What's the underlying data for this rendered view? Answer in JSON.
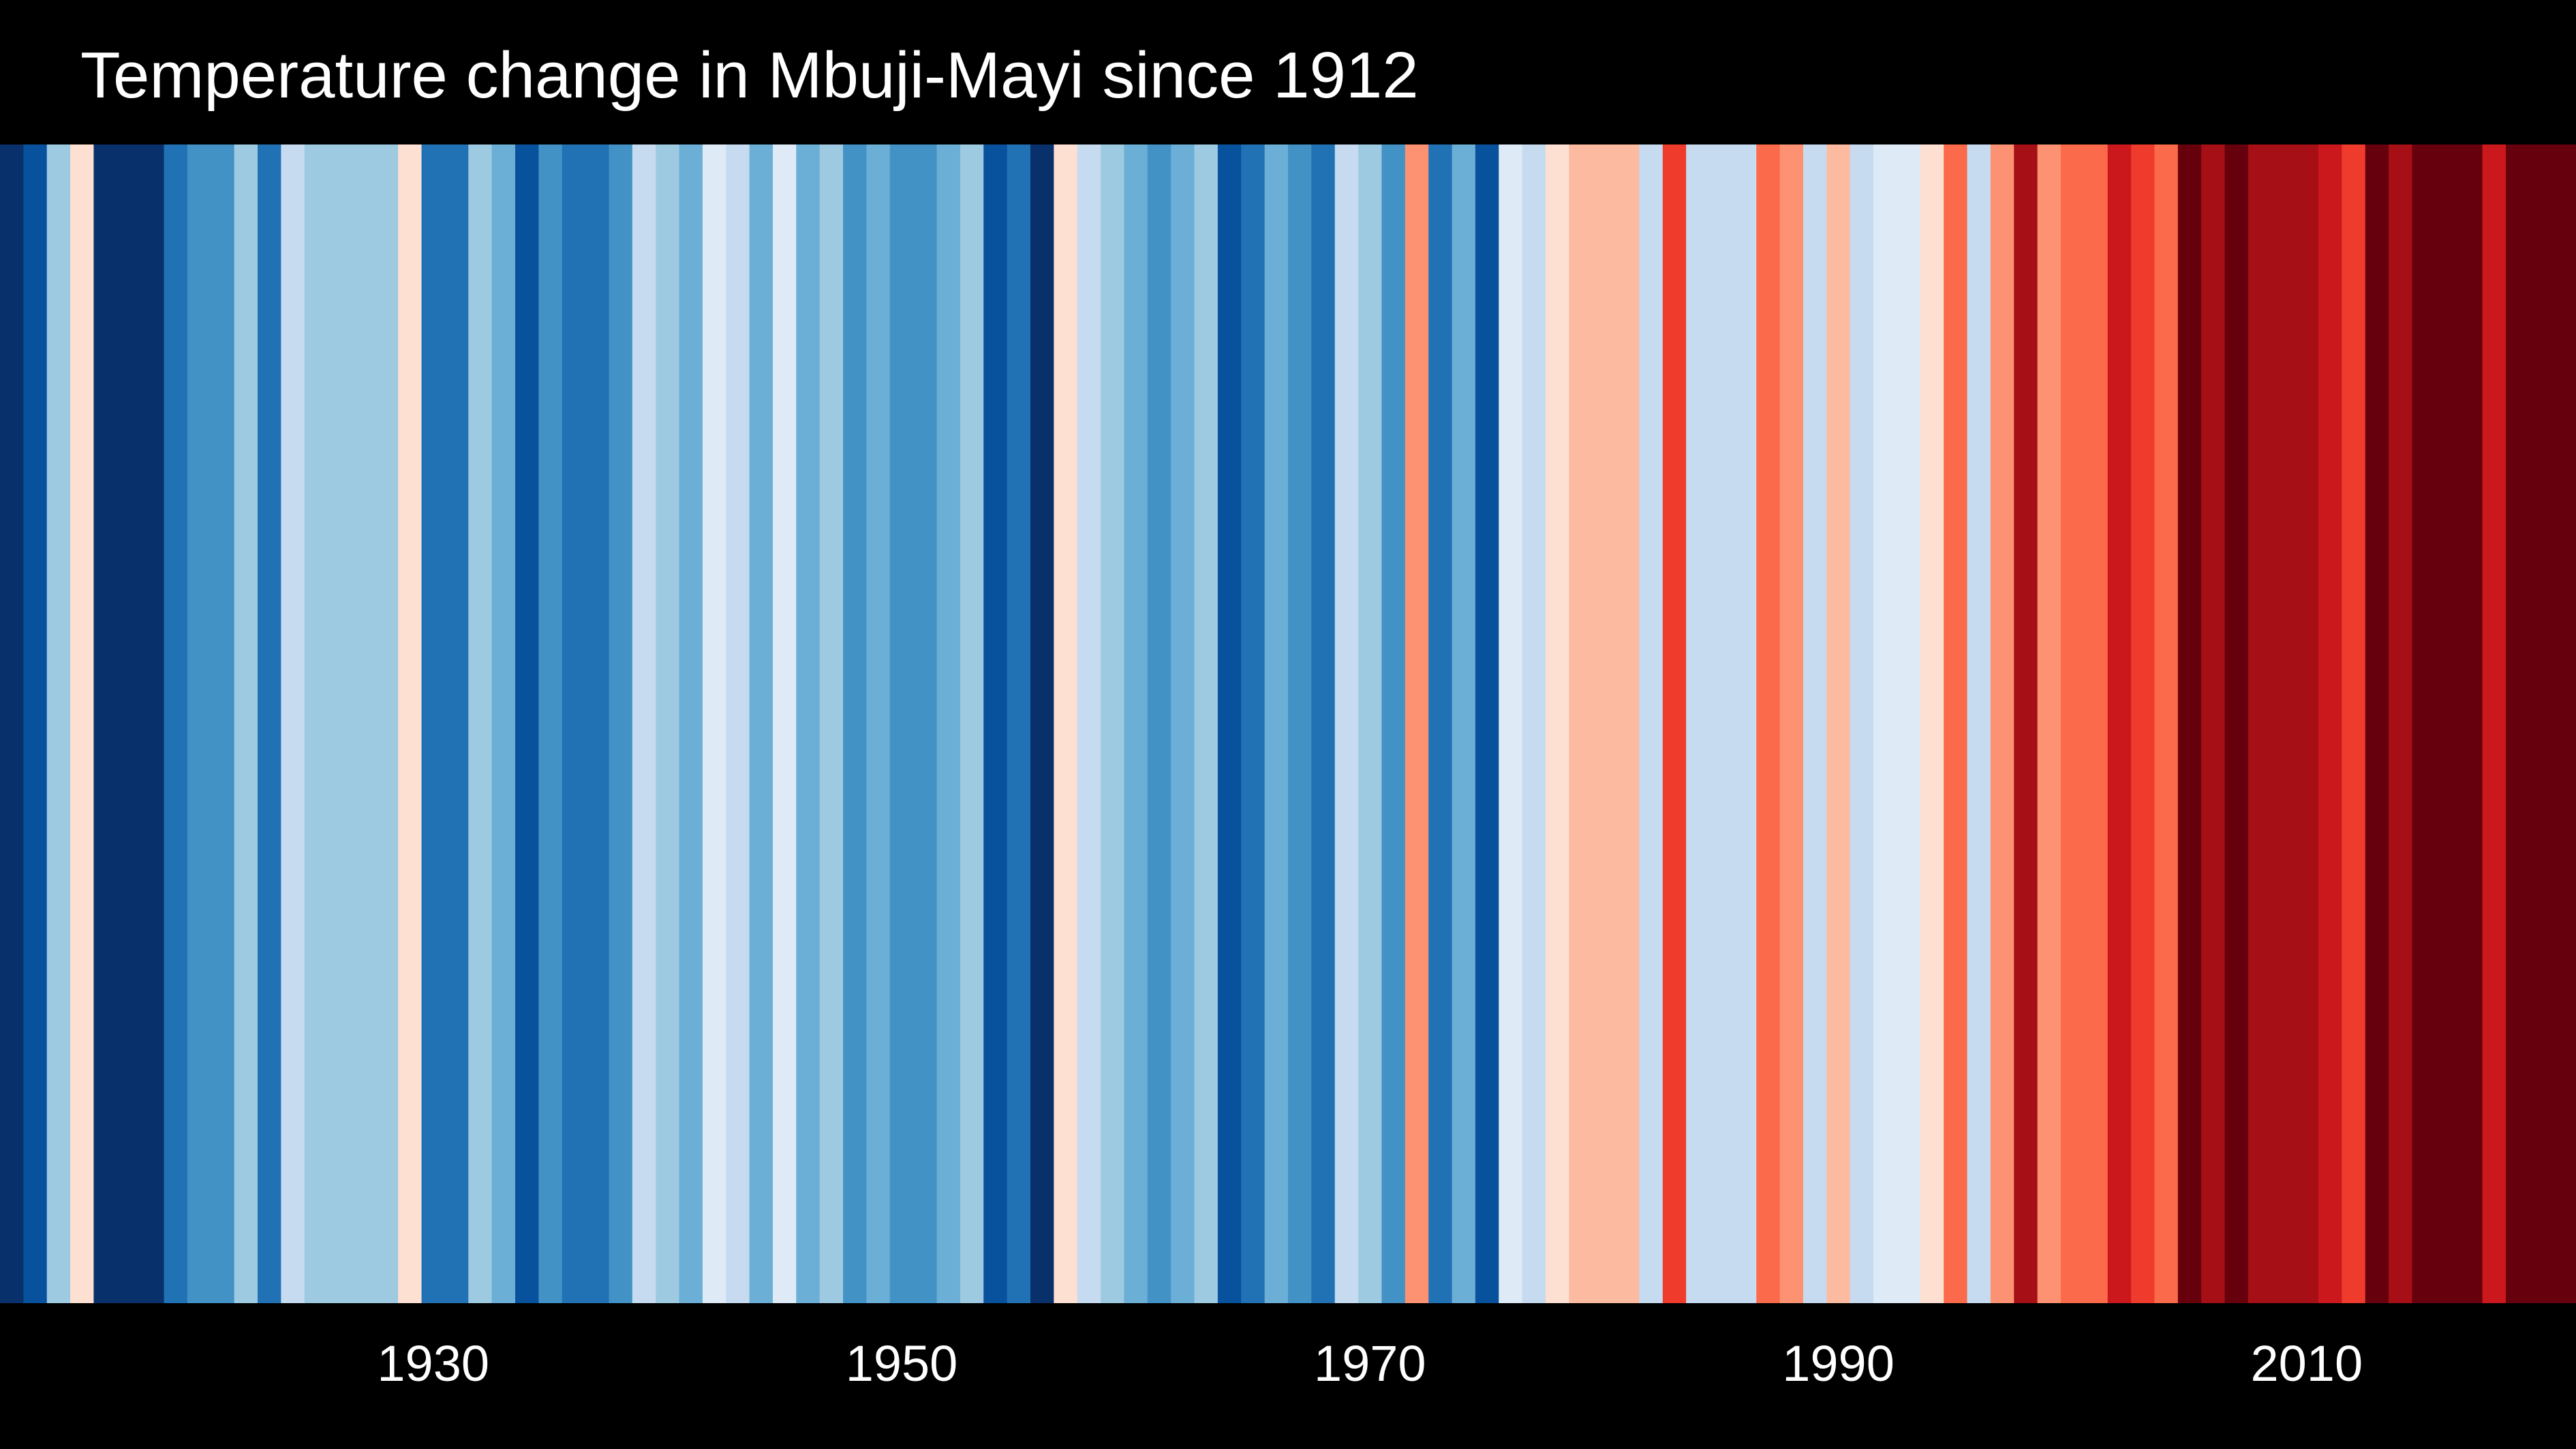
{
  "chart_data": {
    "type": "heatmap",
    "title": "Temperature change in Mbuji-Mayi since 1912",
    "subtitle": "",
    "xlabel": "",
    "ylabel": "",
    "x_start": 1912,
    "x_end": 2021,
    "xlim": [
      1912,
      2022
    ],
    "x_ticks": [
      1930,
      1950,
      1970,
      1990,
      2010
    ],
    "grid": false,
    "legend": "none",
    "color_scale": [
      "#08306b",
      "#08519c",
      "#2171b5",
      "#4292c6",
      "#6baed6",
      "#9ecae1",
      "#c6dbef",
      "#deebf7",
      "#fee0d2",
      "#fcbba1",
      "#fc9272",
      "#fb6a4a",
      "#ef3b2c",
      "#cb181d",
      "#a50f15",
      "#67000d"
    ],
    "years": [
      1912,
      1913,
      1914,
      1915,
      1916,
      1917,
      1918,
      1919,
      1920,
      1921,
      1922,
      1923,
      1924,
      1925,
      1926,
      1927,
      1928,
      1929,
      1930,
      1931,
      1932,
      1933,
      1934,
      1935,
      1936,
      1937,
      1938,
      1939,
      1940,
      1941,
      1942,
      1943,
      1944,
      1945,
      1946,
      1947,
      1948,
      1949,
      1950,
      1951,
      1952,
      1953,
      1954,
      1955,
      1956,
      1957,
      1958,
      1959,
      1960,
      1961,
      1962,
      1963,
      1964,
      1965,
      1966,
      1967,
      1968,
      1969,
      1970,
      1971,
      1972,
      1973,
      1974,
      1975,
      1976,
      1977,
      1978,
      1979,
      1980,
      1981,
      1982,
      1983,
      1984,
      1985,
      1986,
      1987,
      1988,
      1989,
      1990,
      1991,
      1992,
      1993,
      1994,
      1995,
      1996,
      1997,
      1998,
      1999,
      2000,
      2001,
      2002,
      2003,
      2004,
      2005,
      2006,
      2007,
      2008,
      2009,
      2010,
      2011,
      2012,
      2013,
      2014,
      2015,
      2016,
      2017,
      2018,
      2019,
      2020,
      2021
    ],
    "colors": [
      "#08306b",
      "#08519c",
      "#9ecae1",
      "#fee0d2",
      "#08306b",
      "#08306b",
      "#08306b",
      "#2171b5",
      "#4292c6",
      "#4292c6",
      "#9ecae1",
      "#2171b5",
      "#c6dbef",
      "#9ecae1",
      "#9ecae1",
      "#9ecae1",
      "#9ecae1",
      "#fee0d2",
      "#2171b5",
      "#2171b5",
      "#9ecae1",
      "#6baed6",
      "#08519c",
      "#4292c6",
      "#2171b5",
      "#2171b5",
      "#4292c6",
      "#c6dbef",
      "#9ecae1",
      "#6baed6",
      "#deebf7",
      "#c6dbef",
      "#6baed6",
      "#deebf7",
      "#6baed6",
      "#9ecae1",
      "#4292c6",
      "#6baed6",
      "#4292c6",
      "#4292c6",
      "#6baed6",
      "#9ecae1",
      "#08519c",
      "#2171b5",
      "#08306b",
      "#fee0d2",
      "#c6dbef",
      "#9ecae1",
      "#6baed6",
      "#4292c6",
      "#6baed6",
      "#9ecae1",
      "#08519c",
      "#2171b5",
      "#6baed6",
      "#4292c6",
      "#2171b5",
      "#c6dbef",
      "#9ecae1",
      "#4292c6",
      "#fc9272",
      "#2171b5",
      "#6baed6",
      "#08519c",
      "#deebf7",
      "#c6dbef",
      "#fee0d2",
      "#fcbba1",
      "#fcbba1",
      "#fcbba1",
      "#c6dbef",
      "#ef3b2c",
      "#c6dbef",
      "#c6dbef",
      "#c6dbef",
      "#fb6a4a",
      "#fc9272",
      "#c6dbef",
      "#fcbba1",
      "#c6dbef",
      "#deebf7",
      "#deebf7",
      "#fee0d2",
      "#fb6a4a",
      "#c6dbef",
      "#fc9272",
      "#a50f15",
      "#fc9272",
      "#fb6a4a",
      "#fb6a4a",
      "#cb181d",
      "#ef3b2c",
      "#fb6a4a",
      "#67000d",
      "#a50f15",
      "#67000d",
      "#a50f15",
      "#a50f15",
      "#a50f15",
      "#cb181d",
      "#ef3b2c",
      "#67000d",
      "#a50f15",
      "#67000d",
      "#67000d",
      "#67000d",
      "#cb181d",
      "#67000d",
      "#67000d",
      "#67000d"
    ]
  }
}
